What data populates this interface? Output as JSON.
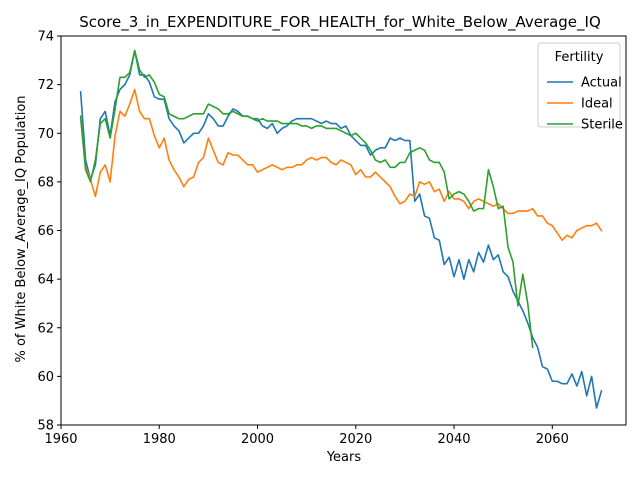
{
  "chart_data": {
    "type": "line",
    "title": "Score_3_in_EXPENDITURE_FOR_HEALTH_for_White_Below_Average_IQ",
    "xlabel": "Years",
    "ylabel": "% of White Below_Average_IQ Population",
    "xlim": [
      1960,
      2075
    ],
    "ylim": [
      58,
      74
    ],
    "xticks": [
      1960,
      1980,
      2000,
      2020,
      2040,
      2060
    ],
    "yticks": [
      58,
      60,
      62,
      64,
      66,
      68,
      70,
      72,
      74
    ],
    "grid": false,
    "legend": {
      "title": "Fertility",
      "placement": "top-right"
    },
    "series": [
      {
        "name": "Actual",
        "color": "#1f77b4",
        "x": [
          1964,
          1965,
          1966,
          1967,
          1968,
          1969,
          1970,
          1971,
          1972,
          1973,
          1974,
          1975,
          1976,
          1977,
          1978,
          1979,
          1980,
          1981,
          1982,
          1983,
          1984,
          1985,
          1986,
          1987,
          1988,
          1989,
          1990,
          1991,
          1992,
          1993,
          1994,
          1995,
          1996,
          1997,
          1998,
          1999,
          2000,
          2001,
          2002,
          2003,
          2004,
          2005,
          2006,
          2007,
          2008,
          2009,
          2010,
          2011,
          2012,
          2013,
          2014,
          2015,
          2016,
          2017,
          2018,
          2019,
          2020,
          2021,
          2022,
          2023,
          2024,
          2025,
          2026,
          2027,
          2028,
          2029,
          2030,
          2031,
          2032,
          2033,
          2034,
          2035,
          2036,
          2037,
          2038,
          2039,
          2040,
          2041,
          2042,
          2043,
          2044,
          2045,
          2046,
          2047,
          2048,
          2049,
          2050,
          2051,
          2052,
          2053,
          2054,
          2055,
          2056,
          2057,
          2058,
          2059,
          2060,
          2061,
          2062,
          2063,
          2064,
          2065,
          2066,
          2067,
          2068,
          2069,
          2070
        ],
        "y": [
          71.7,
          68.9,
          68.1,
          68.7,
          70.6,
          70.9,
          69.9,
          71.3,
          71.8,
          72.0,
          72.4,
          73.4,
          72.4,
          72.4,
          72.1,
          71.5,
          71.4,
          71.4,
          70.6,
          70.3,
          70.1,
          69.6,
          69.8,
          70.0,
          70.0,
          70.3,
          70.8,
          70.6,
          70.3,
          70.3,
          70.7,
          71.0,
          70.9,
          70.7,
          70.7,
          70.6,
          70.6,
          70.3,
          70.2,
          70.4,
          70.0,
          70.2,
          70.3,
          70.5,
          70.6,
          70.6,
          70.6,
          70.6,
          70.5,
          70.4,
          70.5,
          70.4,
          70.4,
          70.2,
          70.3,
          69.9,
          69.7,
          69.5,
          69.5,
          69.1,
          69.3,
          69.4,
          69.4,
          69.8,
          69.7,
          69.8,
          69.7,
          69.7,
          67.2,
          67.5,
          66.6,
          66.5,
          65.7,
          65.6,
          64.6,
          64.9,
          64.1,
          64.8,
          64.0,
          64.8,
          64.3,
          65.1,
          64.7,
          65.4,
          64.8,
          65.0,
          64.3,
          64.1,
          63.5,
          63.1,
          62.7,
          62.2,
          61.6,
          61.2,
          60.4,
          60.3,
          59.8,
          59.8,
          59.7,
          59.7,
          60.1,
          59.6,
          60.2,
          59.2,
          60.0,
          58.7,
          59.4
        ]
      },
      {
        "name": "Ideal",
        "color": "#ff7f0e",
        "x": [
          1964,
          1965,
          1966,
          1967,
          1968,
          1969,
          1970,
          1971,
          1972,
          1973,
          1974,
          1975,
          1976,
          1977,
          1978,
          1979,
          1980,
          1981,
          1982,
          1983,
          1984,
          1985,
          1986,
          1987,
          1988,
          1989,
          1990,
          1991,
          1992,
          1993,
          1994,
          1995,
          1996,
          1997,
          1998,
          1999,
          2000,
          2001,
          2002,
          2003,
          2004,
          2005,
          2006,
          2007,
          2008,
          2009,
          2010,
          2011,
          2012,
          2013,
          2014,
          2015,
          2016,
          2017,
          2018,
          2019,
          2020,
          2021,
          2022,
          2023,
          2024,
          2025,
          2026,
          2027,
          2028,
          2029,
          2030,
          2031,
          2032,
          2033,
          2034,
          2035,
          2036,
          2037,
          2038,
          2039,
          2040,
          2041,
          2042,
          2043,
          2044,
          2045,
          2046,
          2047,
          2048,
          2049,
          2050,
          2051,
          2052,
          2053,
          2054,
          2055,
          2056,
          2057,
          2058,
          2059,
          2060,
          2061,
          2062,
          2063,
          2064,
          2065,
          2066,
          2067,
          2068,
          2069,
          2070
        ],
        "y": [
          70.6,
          68.6,
          68.1,
          67.4,
          68.4,
          68.7,
          68.0,
          69.9,
          70.9,
          70.7,
          71.2,
          71.8,
          70.9,
          70.6,
          70.6,
          69.9,
          69.4,
          69.8,
          68.9,
          68.5,
          68.2,
          67.8,
          68.1,
          68.2,
          68.8,
          69.0,
          69.8,
          69.3,
          68.8,
          68.7,
          69.2,
          69.1,
          69.1,
          68.9,
          68.7,
          68.7,
          68.4,
          68.5,
          68.6,
          68.7,
          68.6,
          68.5,
          68.6,
          68.6,
          68.7,
          68.7,
          68.9,
          69.0,
          68.9,
          69.0,
          69.0,
          68.8,
          68.7,
          68.9,
          68.8,
          68.7,
          68.3,
          68.5,
          68.2,
          68.2,
          68.4,
          68.2,
          68.0,
          67.8,
          67.4,
          67.1,
          67.2,
          67.5,
          67.4,
          68.0,
          67.9,
          68.0,
          67.6,
          67.7,
          67.2,
          67.6,
          67.3,
          67.3,
          67.2,
          66.9,
          67.2,
          67.3,
          67.2,
          67.1,
          67.0,
          67.1,
          66.9,
          66.7,
          66.7,
          66.8,
          66.8,
          66.8,
          66.9,
          66.6,
          66.6,
          66.3,
          66.2,
          65.9,
          65.6,
          65.8,
          65.7,
          66.0,
          66.1,
          66.2,
          66.2,
          66.3,
          66.0
        ]
      },
      {
        "name": "Sterile",
        "color": "#2ca02c",
        "x": [
          1964,
          1965,
          1966,
          1967,
          1968,
          1969,
          1970,
          1971,
          1972,
          1973,
          1974,
          1975,
          1976,
          1977,
          1978,
          1979,
          1980,
          1981,
          1982,
          1983,
          1984,
          1985,
          1986,
          1987,
          1988,
          1989,
          1990,
          1991,
          1992,
          1993,
          1994,
          1995,
          1996,
          1997,
          1998,
          1999,
          2000,
          2001,
          2002,
          2003,
          2004,
          2005,
          2006,
          2007,
          2008,
          2009,
          2010,
          2011,
          2012,
          2013,
          2014,
          2015,
          2016,
          2017,
          2018,
          2019,
          2020,
          2021,
          2022,
          2023,
          2024,
          2025,
          2026,
          2027,
          2028,
          2029,
          2030,
          2031,
          2032,
          2033,
          2034,
          2035,
          2036,
          2037,
          2038,
          2039,
          2040,
          2041,
          2042,
          2043,
          2044,
          2045,
          2046,
          2047,
          2048,
          2049,
          2050,
          2051,
          2052,
          2053,
          2054,
          2055,
          2056
        ],
        "y": [
          70.7,
          68.5,
          68.0,
          68.9,
          70.4,
          70.6,
          69.8,
          71.0,
          72.3,
          72.3,
          72.5,
          73.4,
          72.6,
          72.3,
          72.4,
          72.1,
          71.6,
          71.5,
          70.8,
          70.7,
          70.6,
          70.6,
          70.7,
          70.8,
          70.8,
          70.8,
          71.2,
          71.1,
          71.0,
          70.8,
          70.8,
          70.9,
          70.8,
          70.7,
          70.7,
          70.6,
          70.5,
          70.6,
          70.5,
          70.5,
          70.5,
          70.4,
          70.4,
          70.4,
          70.4,
          70.3,
          70.3,
          70.2,
          70.3,
          70.3,
          70.2,
          70.2,
          70.2,
          70.1,
          70.0,
          69.9,
          70.0,
          69.8,
          69.6,
          69.3,
          68.9,
          68.8,
          68.9,
          68.6,
          68.6,
          68.8,
          68.8,
          69.2,
          69.3,
          69.4,
          69.3,
          68.9,
          68.8,
          68.8,
          68.4,
          67.3,
          67.5,
          67.6,
          67.5,
          67.2,
          66.8,
          66.9,
          66.9,
          68.5,
          67.8,
          66.9,
          67.0,
          65.3,
          64.7,
          62.9,
          64.2,
          63.0,
          61.2
        ]
      }
    ]
  }
}
